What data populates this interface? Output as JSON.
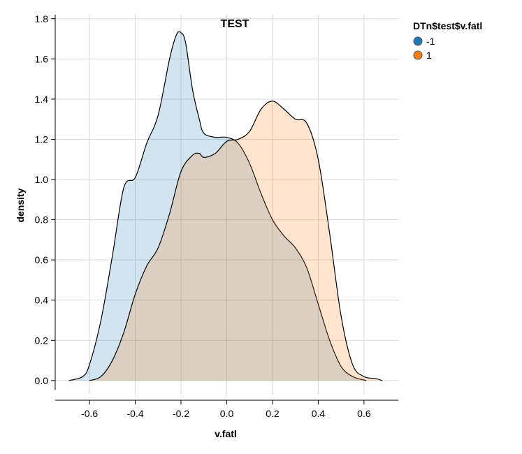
{
  "chart_data": {
    "type": "area",
    "title": "TEST",
    "xlabel": "v.fatl",
    "ylabel": "density",
    "xlim": [
      -0.75,
      0.75
    ],
    "ylim": [
      -0.07,
      1.82
    ],
    "x_ticks": [
      -0.6,
      -0.4,
      -0.2,
      0.0,
      0.2,
      0.4,
      0.6
    ],
    "x_tick_labels": [
      "-0.6",
      "-0.4",
      "-0.2",
      "0.0",
      "0.2",
      "0.4",
      "0.6"
    ],
    "y_ticks": [
      0.0,
      0.2,
      0.4,
      0.6,
      0.8,
      1.0,
      1.2,
      1.4,
      1.6,
      1.8
    ],
    "y_tick_labels": [
      "0.0",
      "0.2",
      "0.4",
      "0.6",
      "0.8",
      "1.0",
      "1.2",
      "1.4",
      "1.6",
      "1.8"
    ],
    "grid": true,
    "legend": {
      "title": "DTn$test$v.fatl",
      "position": "top-right"
    },
    "series": [
      {
        "name": "-1",
        "color": "#1f77b4",
        "fill": "#c6d8ea",
        "x": [
          -0.69,
          -0.63,
          -0.6,
          -0.55,
          -0.5,
          -0.45,
          -0.4,
          -0.35,
          -0.3,
          -0.25,
          -0.22,
          -0.2,
          -0.18,
          -0.15,
          -0.12,
          -0.1,
          -0.05,
          0.0,
          0.05,
          0.1,
          0.15,
          0.2,
          0.25,
          0.3,
          0.35,
          0.4,
          0.45,
          0.5,
          0.55,
          0.61
        ],
        "values": [
          0.0,
          0.02,
          0.08,
          0.3,
          0.62,
          0.96,
          1.01,
          1.18,
          1.32,
          1.6,
          1.72,
          1.73,
          1.68,
          1.45,
          1.3,
          1.23,
          1.21,
          1.21,
          1.18,
          1.08,
          0.93,
          0.8,
          0.72,
          0.66,
          0.56,
          0.38,
          0.2,
          0.07,
          0.02,
          0.0
        ]
      },
      {
        "name": "1",
        "color": "#ff7f0e",
        "fill": "#ffdec6",
        "x": [
          -0.6,
          -0.55,
          -0.5,
          -0.45,
          -0.4,
          -0.35,
          -0.3,
          -0.25,
          -0.2,
          -0.15,
          -0.12,
          -0.1,
          -0.05,
          0.0,
          0.05,
          0.1,
          0.15,
          0.2,
          0.25,
          0.3,
          0.35,
          0.4,
          0.45,
          0.5,
          0.55,
          0.6,
          0.65,
          0.68
        ],
        "values": [
          0.0,
          0.02,
          0.1,
          0.24,
          0.43,
          0.57,
          0.66,
          0.83,
          1.04,
          1.12,
          1.13,
          1.11,
          1.13,
          1.19,
          1.2,
          1.24,
          1.35,
          1.39,
          1.35,
          1.3,
          1.28,
          1.1,
          0.73,
          0.32,
          0.08,
          0.02,
          0.01,
          0.0
        ]
      }
    ]
  }
}
